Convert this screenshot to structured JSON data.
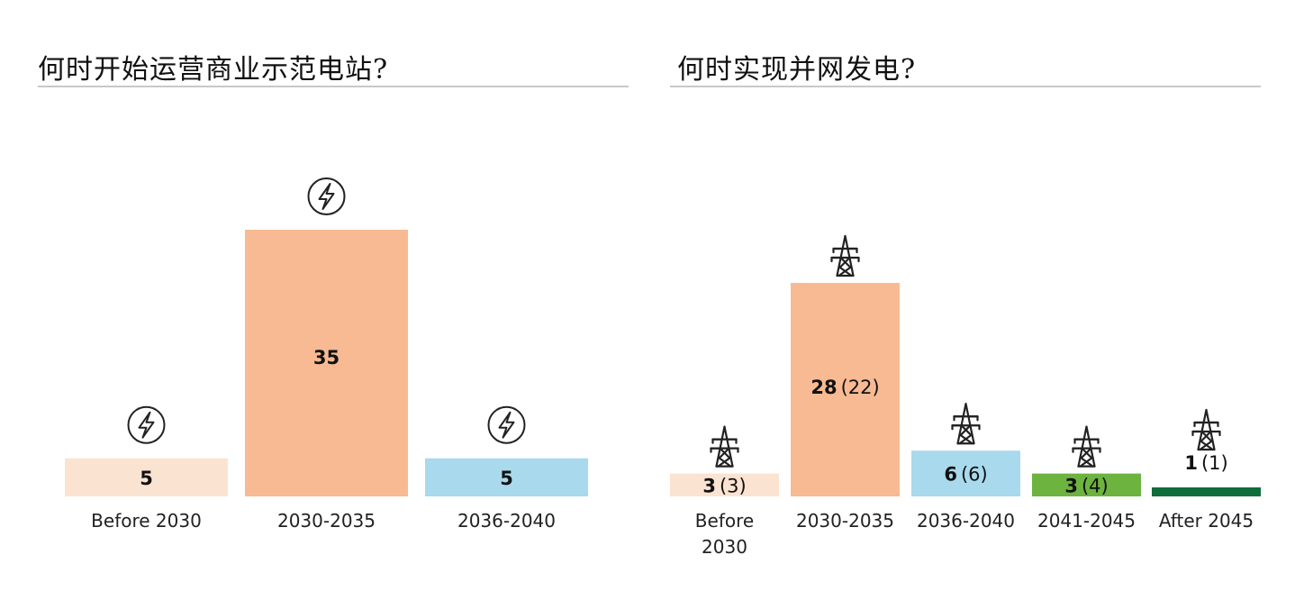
{
  "charts": {
    "left": {
      "title": "何时开始运营商业示范电站?"
    },
    "right": {
      "title": "何时实现并网发电?"
    }
  },
  "chart_data": [
    {
      "type": "bar",
      "title": "何时开始运营商业示范电站?",
      "categories": [
        "Before 2030",
        "2030-2035",
        "2036-2040"
      ],
      "values": [
        5,
        35,
        5
      ],
      "colors": [
        "#fbe3d2",
        "#f7ba93",
        "#a9d9ec"
      ],
      "icon": "lightning-bolt-icon",
      "ylim": [
        0,
        35
      ]
    },
    {
      "type": "bar",
      "title": "何时实现并网发电?",
      "categories": [
        "Before 2030",
        "2030-2035",
        "2036-2040",
        "2041-2045",
        "After 2045"
      ],
      "category_lines": [
        [
          "Before",
          "2030"
        ],
        [
          "2030-2035"
        ],
        [
          "2036-2040"
        ],
        [
          "2041-2045"
        ],
        [
          "After 2045"
        ]
      ],
      "values": [
        3,
        28,
        6,
        3,
        1
      ],
      "secondary_values": [
        3,
        22,
        6,
        4,
        1
      ],
      "colors": [
        "#fbe3d2",
        "#f7ba93",
        "#a9d9ec",
        "#6db33f",
        "#0d6e3b"
      ],
      "icon": "transmission-tower-icon",
      "ylim": [
        0,
        28
      ]
    }
  ]
}
